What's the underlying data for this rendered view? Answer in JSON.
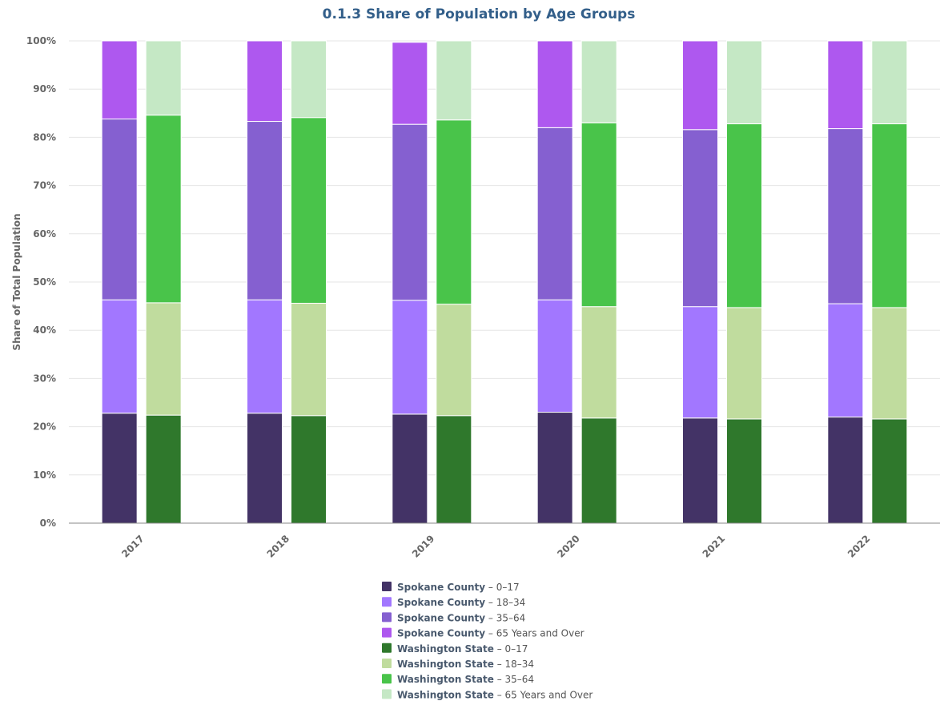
{
  "chart_data": {
    "type": "bar",
    "stacked": true,
    "title": "0.1.3 Share of Population by Age Groups",
    "xlabel": "",
    "ylabel": "Share of Total Population",
    "ylim": [
      0,
      100
    ],
    "yticks": [
      "0%",
      "10%",
      "20%",
      "30%",
      "40%",
      "50%",
      "60%",
      "70%",
      "80%",
      "90%",
      "100%"
    ],
    "grid": true,
    "legend_position": "bottom-center",
    "categories": [
      "2017",
      "2018",
      "2019",
      "2020",
      "2021",
      "2022"
    ],
    "groups": [
      {
        "name": "Spokane County",
        "series": [
          {
            "name": "0–17",
            "color": "#433366",
            "values": [
              22.8,
              22.8,
              22.6,
              23.0,
              21.8,
              22.0
            ]
          },
          {
            "name": "18–34",
            "color": "#a277ff",
            "values": [
              23.5,
              23.5,
              23.6,
              23.3,
              23.1,
              23.5
            ]
          },
          {
            "name": "35–64",
            "color": "#8560d0",
            "values": [
              37.5,
              37.0,
              36.5,
              35.7,
              36.7,
              36.3
            ]
          },
          {
            "name": "65 Years and Over",
            "color": "#ae58ef",
            "values": [
              16.2,
              16.7,
              17.0,
              18.0,
              18.4,
              18.2
            ]
          }
        ]
      },
      {
        "name": "Washington State",
        "series": [
          {
            "name": "0–17",
            "color": "#2f782c",
            "values": [
              22.4,
              22.3,
              22.3,
              21.8,
              21.6,
              21.6
            ]
          },
          {
            "name": "18–34",
            "color": "#c0dc9e",
            "values": [
              23.3,
              23.3,
              23.1,
              23.1,
              23.1,
              23.1
            ]
          },
          {
            "name": "35–64",
            "color": "#49c44a",
            "values": [
              38.9,
              38.5,
              38.2,
              38.1,
              38.1,
              38.1
            ]
          },
          {
            "name": "65 Years and Over",
            "color": "#c5e8c5",
            "values": [
              15.4,
              15.9,
              16.4,
              17.0,
              17.2,
              17.2
            ]
          }
        ]
      }
    ]
  }
}
